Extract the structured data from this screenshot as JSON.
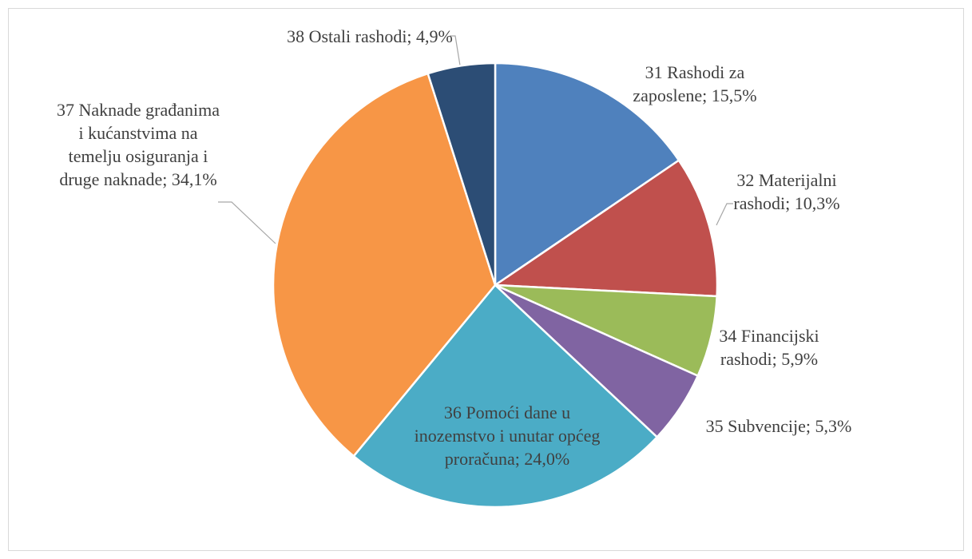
{
  "chart_data": {
    "type": "pie",
    "categories": [
      "31 Rashodi za zaposlene;",
      "32 Materijalni rashodi;",
      "34 Financijski rashodi;",
      "35 Subvencije;",
      "36 Pomoći dane u inozemstvo i unutar općeg proračuna;",
      "37 Naknade građanima i kućanstvima na temelju osiguranja i druge naknade;",
      "38 Ostali rashodi;"
    ],
    "values": [
      15.5,
      10.3,
      5.9,
      5.3,
      24.0,
      34.1,
      4.9
    ],
    "value_labels": [
      "15,5%",
      "10,3%",
      "5,9%",
      "5,3%",
      "24,0%",
      "34,1%",
      "4,9%"
    ],
    "colors": [
      "#4f81bd",
      "#c0504d",
      "#9bbb59",
      "#8064a2",
      "#4bacc6",
      "#f79646",
      "#2c4d75"
    ]
  }
}
